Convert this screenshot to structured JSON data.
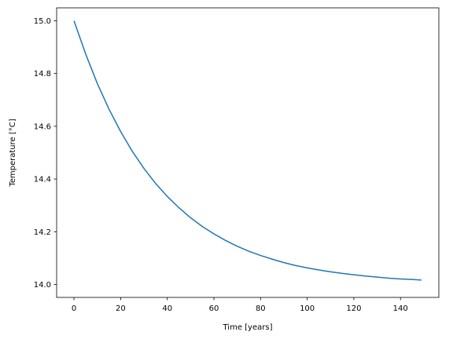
{
  "chart_data": {
    "type": "line",
    "title": "",
    "xlabel": "Time [years]",
    "ylabel": "Temperature [°C]",
    "xlim": [
      -7.45,
      156.45
    ],
    "ylim": [
      13.951,
      15.049
    ],
    "xticks": [
      0,
      20,
      40,
      60,
      80,
      100,
      120,
      140
    ],
    "xtick_labels": [
      "0",
      "20",
      "40",
      "60",
      "80",
      "100",
      "120",
      "140"
    ],
    "yticks": [
      14.0,
      14.2,
      14.4,
      14.6,
      14.8,
      15.0
    ],
    "ytick_labels": [
      "14.0",
      "14.2",
      "14.4",
      "14.6",
      "14.8",
      "15.0"
    ],
    "grid": false,
    "legend": null,
    "series": [
      {
        "color": "#1f77b4",
        "x": [
          0,
          5,
          10,
          15,
          20,
          25,
          30,
          35,
          40,
          45,
          50,
          55,
          60,
          65,
          70,
          75,
          80,
          85,
          90,
          95,
          100,
          105,
          110,
          115,
          120,
          125,
          130,
          135,
          140,
          145,
          149
        ],
        "y": [
          15.0,
          14.874,
          14.762,
          14.665,
          14.58,
          14.505,
          14.44,
          14.383,
          14.334,
          14.291,
          14.253,
          14.22,
          14.192,
          14.167,
          14.145,
          14.126,
          14.11,
          14.096,
          14.083,
          14.072,
          14.063,
          14.055,
          14.048,
          14.042,
          14.037,
          14.032,
          14.028,
          14.024,
          14.021,
          14.019,
          14.017
        ]
      }
    ]
  }
}
